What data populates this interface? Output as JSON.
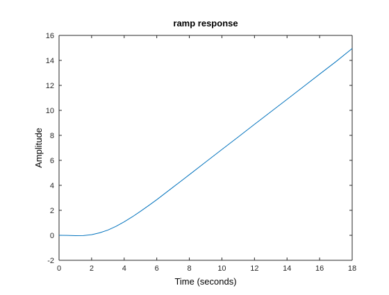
{
  "chart_data": {
    "type": "line",
    "title": "ramp response",
    "xlabel": "Time (seconds)",
    "ylabel": "Amplitude",
    "xlim": [
      0,
      18
    ],
    "ylim": [
      -2,
      16
    ],
    "xticks": [
      0,
      2,
      4,
      6,
      8,
      10,
      12,
      14,
      16,
      18
    ],
    "yticks": [
      -2,
      0,
      2,
      4,
      6,
      8,
      10,
      12,
      14,
      16
    ],
    "grid": false,
    "colors": {
      "line": "#0072bd",
      "axes": "#262626",
      "background": "#ffffff"
    },
    "series": [
      {
        "x": [
          0,
          0.5,
          1,
          1.5,
          2,
          2.5,
          3,
          3.5,
          4,
          4.5,
          5,
          5.5,
          6,
          7,
          8,
          9,
          10,
          11,
          12,
          13,
          14,
          15,
          16,
          17,
          18
        ],
        "values": [
          0,
          -0.01,
          -0.03,
          -0.02,
          0.05,
          0.2,
          0.42,
          0.72,
          1.08,
          1.48,
          1.92,
          2.38,
          2.85,
          3.85,
          4.85,
          5.86,
          6.87,
          7.87,
          8.88,
          9.88,
          10.88,
          11.89,
          12.9,
          13.9,
          14.95
        ]
      }
    ]
  }
}
